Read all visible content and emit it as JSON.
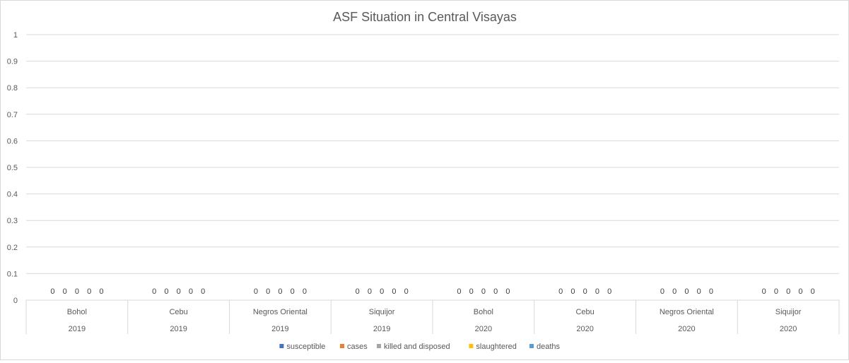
{
  "chart_data": {
    "type": "bar",
    "title": "ASF Situation in Central Visayas",
    "xlabel": "",
    "ylabel": "",
    "ylim": [
      0,
      1
    ],
    "yticks": [
      "0",
      "0.1",
      "0.2",
      "0.3",
      "0.4",
      "0.5",
      "0.6",
      "0.7",
      "0.8",
      "0.9",
      "1"
    ],
    "grid": true,
    "legend_position": "bottom",
    "categories": [
      {
        "name": "Bohol",
        "year": "2019"
      },
      {
        "name": "Cebu",
        "year": "2019"
      },
      {
        "name": "Negros Oriental",
        "year": "2019"
      },
      {
        "name": "Siquijor",
        "year": "2019"
      },
      {
        "name": "Bohol",
        "year": "2020"
      },
      {
        "name": "Cebu",
        "year": "2020"
      },
      {
        "name": "Negros Oriental",
        "year": "2020"
      },
      {
        "name": "Siquijor",
        "year": "2020"
      }
    ],
    "series": [
      {
        "name": "susceptible",
        "color": "#4472c4",
        "values": [
          0,
          0,
          0,
          0,
          0,
          0,
          0,
          0
        ]
      },
      {
        "name": "cases",
        "color": "#ed7d31",
        "values": [
          0,
          0,
          0,
          0,
          0,
          0,
          0,
          0
        ]
      },
      {
        "name": "killed and disposed",
        "color": "#a5a5a5",
        "values": [
          0,
          0,
          0,
          0,
          0,
          0,
          0,
          0
        ]
      },
      {
        "name": "slaughtered",
        "color": "#ffc000",
        "values": [
          0,
          0,
          0,
          0,
          0,
          0,
          0,
          0
        ]
      },
      {
        "name": "deaths",
        "color": "#5b9bd5",
        "values": [
          0,
          0,
          0,
          0,
          0,
          0,
          0,
          0
        ]
      }
    ]
  }
}
